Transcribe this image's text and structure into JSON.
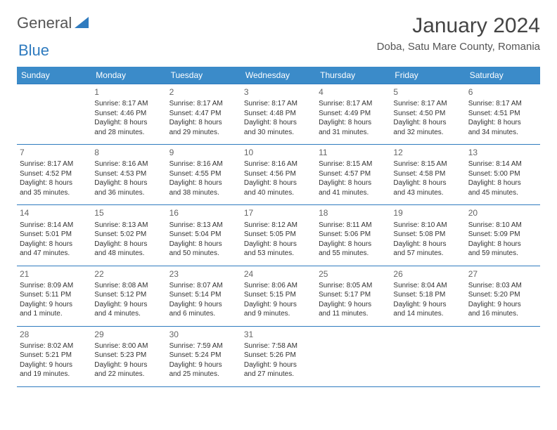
{
  "logo": {
    "text1": "General",
    "text2": "Blue",
    "color1": "#555555",
    "color2": "#2f7bbf"
  },
  "title": "January 2024",
  "location": "Doba, Satu Mare County, Romania",
  "header_bg": "#3b8bc9",
  "border_color": "#2f7bbf",
  "weekdays": [
    "Sunday",
    "Monday",
    "Tuesday",
    "Wednesday",
    "Thursday",
    "Friday",
    "Saturday"
  ],
  "weeks": [
    [
      null,
      {
        "n": "1",
        "sr": "Sunrise: 8:17 AM",
        "ss": "Sunset: 4:46 PM",
        "d1": "Daylight: 8 hours",
        "d2": "and 28 minutes."
      },
      {
        "n": "2",
        "sr": "Sunrise: 8:17 AM",
        "ss": "Sunset: 4:47 PM",
        "d1": "Daylight: 8 hours",
        "d2": "and 29 minutes."
      },
      {
        "n": "3",
        "sr": "Sunrise: 8:17 AM",
        "ss": "Sunset: 4:48 PM",
        "d1": "Daylight: 8 hours",
        "d2": "and 30 minutes."
      },
      {
        "n": "4",
        "sr": "Sunrise: 8:17 AM",
        "ss": "Sunset: 4:49 PM",
        "d1": "Daylight: 8 hours",
        "d2": "and 31 minutes."
      },
      {
        "n": "5",
        "sr": "Sunrise: 8:17 AM",
        "ss": "Sunset: 4:50 PM",
        "d1": "Daylight: 8 hours",
        "d2": "and 32 minutes."
      },
      {
        "n": "6",
        "sr": "Sunrise: 8:17 AM",
        "ss": "Sunset: 4:51 PM",
        "d1": "Daylight: 8 hours",
        "d2": "and 34 minutes."
      }
    ],
    [
      {
        "n": "7",
        "sr": "Sunrise: 8:17 AM",
        "ss": "Sunset: 4:52 PM",
        "d1": "Daylight: 8 hours",
        "d2": "and 35 minutes."
      },
      {
        "n": "8",
        "sr": "Sunrise: 8:16 AM",
        "ss": "Sunset: 4:53 PM",
        "d1": "Daylight: 8 hours",
        "d2": "and 36 minutes."
      },
      {
        "n": "9",
        "sr": "Sunrise: 8:16 AM",
        "ss": "Sunset: 4:55 PM",
        "d1": "Daylight: 8 hours",
        "d2": "and 38 minutes."
      },
      {
        "n": "10",
        "sr": "Sunrise: 8:16 AM",
        "ss": "Sunset: 4:56 PM",
        "d1": "Daylight: 8 hours",
        "d2": "and 40 minutes."
      },
      {
        "n": "11",
        "sr": "Sunrise: 8:15 AM",
        "ss": "Sunset: 4:57 PM",
        "d1": "Daylight: 8 hours",
        "d2": "and 41 minutes."
      },
      {
        "n": "12",
        "sr": "Sunrise: 8:15 AM",
        "ss": "Sunset: 4:58 PM",
        "d1": "Daylight: 8 hours",
        "d2": "and 43 minutes."
      },
      {
        "n": "13",
        "sr": "Sunrise: 8:14 AM",
        "ss": "Sunset: 5:00 PM",
        "d1": "Daylight: 8 hours",
        "d2": "and 45 minutes."
      }
    ],
    [
      {
        "n": "14",
        "sr": "Sunrise: 8:14 AM",
        "ss": "Sunset: 5:01 PM",
        "d1": "Daylight: 8 hours",
        "d2": "and 47 minutes."
      },
      {
        "n": "15",
        "sr": "Sunrise: 8:13 AM",
        "ss": "Sunset: 5:02 PM",
        "d1": "Daylight: 8 hours",
        "d2": "and 48 minutes."
      },
      {
        "n": "16",
        "sr": "Sunrise: 8:13 AM",
        "ss": "Sunset: 5:04 PM",
        "d1": "Daylight: 8 hours",
        "d2": "and 50 minutes."
      },
      {
        "n": "17",
        "sr": "Sunrise: 8:12 AM",
        "ss": "Sunset: 5:05 PM",
        "d1": "Daylight: 8 hours",
        "d2": "and 53 minutes."
      },
      {
        "n": "18",
        "sr": "Sunrise: 8:11 AM",
        "ss": "Sunset: 5:06 PM",
        "d1": "Daylight: 8 hours",
        "d2": "and 55 minutes."
      },
      {
        "n": "19",
        "sr": "Sunrise: 8:10 AM",
        "ss": "Sunset: 5:08 PM",
        "d1": "Daylight: 8 hours",
        "d2": "and 57 minutes."
      },
      {
        "n": "20",
        "sr": "Sunrise: 8:10 AM",
        "ss": "Sunset: 5:09 PM",
        "d1": "Daylight: 8 hours",
        "d2": "and 59 minutes."
      }
    ],
    [
      {
        "n": "21",
        "sr": "Sunrise: 8:09 AM",
        "ss": "Sunset: 5:11 PM",
        "d1": "Daylight: 9 hours",
        "d2": "and 1 minute."
      },
      {
        "n": "22",
        "sr": "Sunrise: 8:08 AM",
        "ss": "Sunset: 5:12 PM",
        "d1": "Daylight: 9 hours",
        "d2": "and 4 minutes."
      },
      {
        "n": "23",
        "sr": "Sunrise: 8:07 AM",
        "ss": "Sunset: 5:14 PM",
        "d1": "Daylight: 9 hours",
        "d2": "and 6 minutes."
      },
      {
        "n": "24",
        "sr": "Sunrise: 8:06 AM",
        "ss": "Sunset: 5:15 PM",
        "d1": "Daylight: 9 hours",
        "d2": "and 9 minutes."
      },
      {
        "n": "25",
        "sr": "Sunrise: 8:05 AM",
        "ss": "Sunset: 5:17 PM",
        "d1": "Daylight: 9 hours",
        "d2": "and 11 minutes."
      },
      {
        "n": "26",
        "sr": "Sunrise: 8:04 AM",
        "ss": "Sunset: 5:18 PM",
        "d1": "Daylight: 9 hours",
        "d2": "and 14 minutes."
      },
      {
        "n": "27",
        "sr": "Sunrise: 8:03 AM",
        "ss": "Sunset: 5:20 PM",
        "d1": "Daylight: 9 hours",
        "d2": "and 16 minutes."
      }
    ],
    [
      {
        "n": "28",
        "sr": "Sunrise: 8:02 AM",
        "ss": "Sunset: 5:21 PM",
        "d1": "Daylight: 9 hours",
        "d2": "and 19 minutes."
      },
      {
        "n": "29",
        "sr": "Sunrise: 8:00 AM",
        "ss": "Sunset: 5:23 PM",
        "d1": "Daylight: 9 hours",
        "d2": "and 22 minutes."
      },
      {
        "n": "30",
        "sr": "Sunrise: 7:59 AM",
        "ss": "Sunset: 5:24 PM",
        "d1": "Daylight: 9 hours",
        "d2": "and 25 minutes."
      },
      {
        "n": "31",
        "sr": "Sunrise: 7:58 AM",
        "ss": "Sunset: 5:26 PM",
        "d1": "Daylight: 9 hours",
        "d2": "and 27 minutes."
      },
      null,
      null,
      null
    ]
  ]
}
